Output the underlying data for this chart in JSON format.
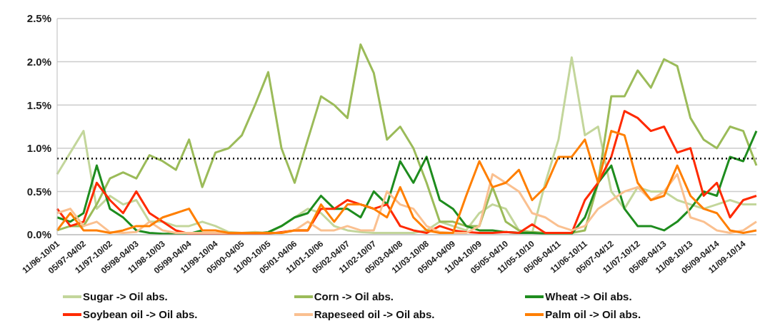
{
  "chart_data": {
    "type": "line",
    "categories": [
      "11/96-10/01",
      null,
      "05/97-04/02",
      null,
      "11/97-10/02",
      null,
      "05/98-04/03",
      null,
      "11/98-10/03",
      null,
      "05/99-04/04",
      null,
      "11/99-10/04",
      null,
      "05/00-04/05",
      null,
      "11/00-10/05",
      null,
      "05/01-04/06",
      null,
      "11/01-10/06",
      null,
      "05/02-04/07",
      null,
      "11/02-10/07",
      null,
      "05/03-04/08",
      null,
      "11/03-10/08",
      null,
      "05/04-04/09",
      null,
      "11/04-10/09",
      null,
      "05/05-04/10",
      null,
      "11/05-10/10",
      null,
      "05/06-04/11",
      null,
      "11/06-10/11",
      null,
      "05/07-04/12",
      null,
      "11/07-10/12",
      null,
      "05/08-04/13",
      null,
      "11/08-10/13",
      null,
      "05/09-04/14",
      null,
      "11/09-10/14",
      null
    ],
    "series": [
      {
        "name": "Sugar -> Oil abs.",
        "color": "#c3d69b",
        "values": [
          0.7,
          0.95,
          1.2,
          0.3,
          0.45,
          0.35,
          0.4,
          0.15,
          0.15,
          0.1,
          0.1,
          0.15,
          0.1,
          0.03,
          0.02,
          0.03,
          0.02,
          0.1,
          0.2,
          0.3,
          0.25,
          0.1,
          0.05,
          0.03,
          0.02,
          0.02,
          0.02,
          0.02,
          0.05,
          0.15,
          0.1,
          0.05,
          0.25,
          0.35,
          0.3,
          0.05,
          0.02,
          0.6,
          1.1,
          2.05,
          1.15,
          1.25,
          0.5,
          0.3,
          0.55,
          0.5,
          0.5,
          0.4,
          0.35,
          0.3,
          0.35,
          0.4,
          0.35,
          0.35
        ]
      },
      {
        "name": "Corn -> Oil abs.",
        "color": "#9bbb59",
        "values": [
          0.05,
          0.1,
          0.1,
          0.35,
          0.65,
          0.72,
          0.65,
          0.92,
          0.85,
          0.75,
          1.1,
          0.55,
          0.95,
          1.0,
          1.15,
          1.5,
          1.88,
          1.0,
          0.6,
          1.1,
          1.6,
          1.5,
          1.35,
          2.2,
          1.87,
          1.1,
          1.25,
          1.0,
          0.6,
          0.15,
          0.15,
          0.1,
          0.1,
          0.55,
          0.15,
          0.05,
          0.03,
          0.02,
          0.02,
          0.02,
          0.05,
          0.6,
          1.6,
          1.6,
          1.9,
          1.7,
          2.03,
          1.95,
          1.35,
          1.1,
          1.0,
          1.25,
          1.2,
          0.8
        ]
      },
      {
        "name": "Wheat -> Oil abs.",
        "color": "#1e8c1e",
        "values": [
          0.2,
          0.15,
          0.25,
          0.8,
          0.3,
          0.2,
          0.05,
          0.02,
          0.01,
          0.01,
          0.01,
          0.05,
          null,
          null,
          null,
          0.01,
          0.03,
          0.1,
          0.2,
          0.25,
          0.45,
          0.3,
          0.3,
          0.2,
          0.5,
          0.35,
          0.85,
          0.6,
          0.9,
          0.4,
          0.3,
          0.1,
          0.05,
          0.05,
          0.03,
          0.02,
          0.02,
          0.01,
          0.01,
          0.01,
          0.2,
          0.6,
          0.8,
          0.3,
          0.1,
          0.1,
          0.05,
          0.15,
          0.3,
          0.5,
          0.45,
          0.9,
          0.85,
          1.2
        ]
      },
      {
        "name": "Soybean oil -> Oil abs.",
        "color": "#ff2a00",
        "values": [
          0.3,
          0.1,
          0.15,
          0.6,
          0.4,
          0.25,
          0.5,
          0.25,
          0.15,
          0.05,
          0.01,
          0.01,
          0.01,
          0.01,
          0.01,
          0.01,
          0.01,
          0.03,
          0.05,
          0.05,
          0.3,
          0.3,
          0.4,
          0.35,
          0.3,
          0.35,
          0.1,
          0.05,
          0.02,
          0.1,
          0.05,
          0.03,
          0.02,
          0.02,
          0.03,
          0.02,
          0.12,
          0.02,
          0.02,
          0.02,
          0.4,
          0.6,
          0.9,
          1.43,
          1.35,
          1.2,
          1.25,
          0.95,
          1.0,
          0.45,
          0.6,
          0.2,
          0.4,
          0.45
        ]
      },
      {
        "name": "Rapeseed oil -> Oil abs.",
        "color": "#fac090",
        "values": [
          0.25,
          0.3,
          0.1,
          0.15,
          0.03,
          0.02,
          0.03,
          0.15,
          0.05,
          0.02,
          0.02,
          0.02,
          0.02,
          0.02,
          null,
          0.02,
          0.02,
          0.02,
          0.05,
          0.15,
          0.05,
          0.05,
          0.1,
          0.05,
          0.05,
          0.5,
          0.35,
          0.3,
          0.1,
          0.03,
          0.02,
          0.02,
          0.1,
          0.7,
          0.6,
          0.5,
          0.25,
          0.2,
          0.1,
          0.05,
          0.1,
          0.3,
          0.4,
          0.5,
          0.55,
          0.4,
          0.5,
          0.7,
          0.2,
          0.15,
          0.05,
          0.02,
          0.05,
          0.15
        ]
      },
      {
        "name": "Palm oil -> Oil abs.",
        "color": "#ff7f00",
        "values": [
          0.05,
          0.25,
          0.05,
          0.05,
          0.02,
          0.05,
          0.1,
          0.1,
          0.2,
          0.25,
          0.3,
          0.05,
          0.05,
          0.02,
          0.02,
          0.02,
          0.02,
          0.02,
          0.05,
          0.05,
          0.35,
          0.15,
          0.35,
          0.35,
          0.3,
          0.2,
          0.55,
          0.2,
          0.05,
          0.02,
          0.02,
          0.45,
          0.85,
          0.55,
          0.6,
          0.75,
          0.4,
          0.55,
          0.9,
          0.9,
          1.1,
          0.6,
          1.2,
          1.15,
          0.6,
          0.4,
          0.45,
          0.8,
          0.45,
          0.3,
          0.25,
          0.05,
          0.02,
          0.05
        ]
      }
    ],
    "ylim": [
      0,
      2.5
    ],
    "yticks": [
      {
        "value": 0,
        "label": "0.0%"
      },
      {
        "value": 0.5,
        "label": "0.5%"
      },
      {
        "value": 1,
        "label": "1.0%"
      },
      {
        "value": 1.5,
        "label": "1.5%"
      },
      {
        "value": 2,
        "label": "2.0%"
      },
      {
        "value": 2.5,
        "label": "2.5%"
      }
    ],
    "ref_lines": [
      {
        "axis": "y",
        "value": 0.88,
        "color": "#000000",
        "line_style": "dotted"
      }
    ],
    "grid": "y",
    "legend": "bottom",
    "marker": "none",
    "line_style": "solid"
  }
}
